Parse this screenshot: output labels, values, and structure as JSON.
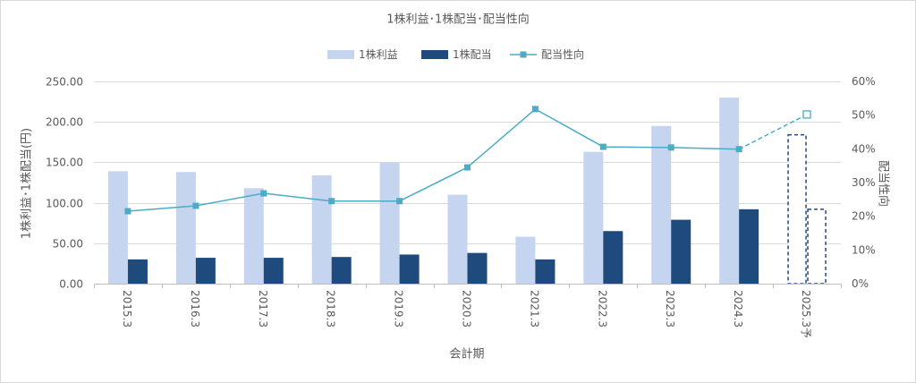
{
  "chart_data": {
    "type": "bar",
    "title": "1株利益･1株配当･配当性向",
    "xlabel": "会計期",
    "ylabel": "1株利益･1株配当(円)",
    "y2label": "配当性向",
    "categories": [
      "2015.3",
      "2016.3",
      "2017.3",
      "2018.3",
      "2019.3",
      "2020.3",
      "2021.3",
      "2022.3",
      "2023.3",
      "2024.3",
      "2025.3予"
    ],
    "forecast": [
      false,
      false,
      false,
      false,
      false,
      false,
      false,
      false,
      false,
      false,
      true
    ],
    "ylim": [
      0,
      250
    ],
    "y2lim": [
      0,
      60
    ],
    "yticks": [
      "0.00",
      "50.00",
      "100.00",
      "150.00",
      "200.00",
      "250.00"
    ],
    "y2ticks": [
      "0%",
      "10%",
      "20%",
      "30%",
      "40%",
      "50%",
      "60%"
    ],
    "grid": true,
    "legend_position": "top-center",
    "series": [
      {
        "name": "1株利益",
        "type": "bar",
        "axis": "left",
        "color": "#c6d5ef",
        "values": [
          139,
          138,
          118,
          134,
          150,
          110,
          58,
          163,
          195,
          230,
          184
        ]
      },
      {
        "name": "1株配当",
        "type": "bar",
        "axis": "left",
        "color": "#1f4a7d",
        "values": [
          30,
          32,
          32,
          33,
          36,
          38,
          30,
          65,
          79,
          92,
          92
        ]
      },
      {
        "name": "配当性向",
        "type": "line",
        "axis": "right",
        "color": "#4bacc6",
        "marker": "square",
        "values": [
          21.5,
          23.1,
          26.8,
          24.5,
          24.5,
          34.5,
          51.8,
          40.6,
          40.4,
          39.9,
          50.2
        ]
      }
    ]
  }
}
